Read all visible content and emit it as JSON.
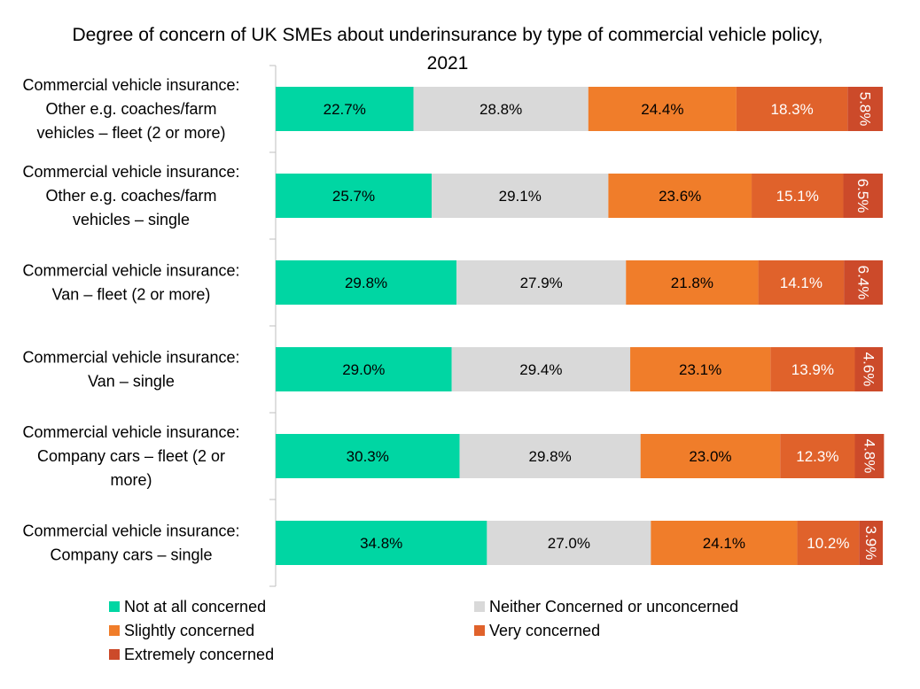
{
  "chart_data": {
    "type": "bar",
    "orientation": "horizontal",
    "stacked": true,
    "title_lines": [
      "Degree of concern of UK SMEs about underinsurance by type of commercial vehicle policy,",
      "2021"
    ],
    "categories": [
      [
        "Commercial vehicle insurance:",
        "Other e.g. coaches/farm",
        "vehicles – fleet (2 or more)"
      ],
      [
        "Commercial vehicle insurance:",
        "Other e.g. coaches/farm",
        "vehicles – single"
      ],
      [
        "Commercial vehicle insurance:",
        "Van – fleet (2 or more)"
      ],
      [
        "Commercial vehicle insurance:",
        "Van – single"
      ],
      [
        "Commercial vehicle insurance:",
        "Company cars – fleet (2 or",
        "more)"
      ],
      [
        "Commercial vehicle insurance:",
        "Company cars – single"
      ]
    ],
    "series": [
      {
        "name": "Not at all concerned",
        "color": "#00d6a3",
        "label_color": "#000000",
        "values": [
          22.7,
          25.7,
          29.8,
          29.0,
          30.3,
          34.8
        ]
      },
      {
        "name": "Neither Concerned or unconcerned",
        "color": "#d9d9d9",
        "label_color": "#000000",
        "values": [
          28.8,
          29.1,
          27.9,
          29.4,
          29.8,
          27.0
        ]
      },
      {
        "name": "Slightly concerned",
        "color": "#f07d2a",
        "label_color": "#000000",
        "values": [
          24.4,
          23.6,
          21.8,
          23.1,
          23.0,
          24.1
        ]
      },
      {
        "name": "Very concerned",
        "color": "#e0622b",
        "label_color": "#ffffff",
        "values": [
          18.3,
          15.1,
          14.1,
          13.9,
          12.3,
          10.2
        ]
      },
      {
        "name": "Extremely concerned",
        "color": "#cc4a2a",
        "label_color": "#ffffff",
        "values": [
          5.8,
          6.5,
          6.4,
          4.6,
          4.8,
          3.9
        ]
      }
    ],
    "value_suffix": "%",
    "xlim": [
      0,
      100
    ],
    "legend_position": "bottom"
  }
}
